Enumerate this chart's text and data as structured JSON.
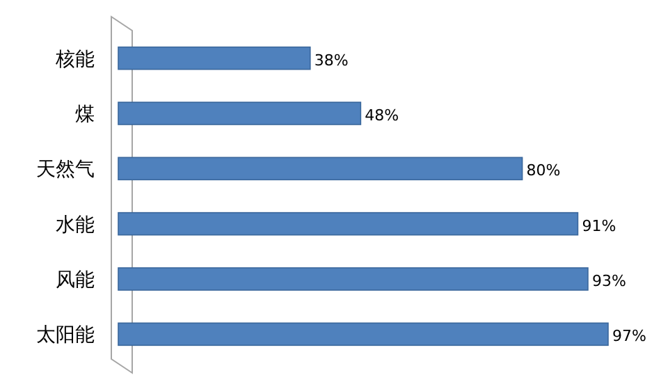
{
  "chart_data": {
    "type": "bar",
    "orientation": "horizontal",
    "categories": [
      "核能",
      "煤",
      "天然气",
      "水能",
      "风能",
      "太阳能"
    ],
    "values": [
      38,
      48,
      80,
      91,
      93,
      97
    ],
    "color": "#4f81bd",
    "value_labels": [
      "38%",
      "48%",
      "80%",
      "91%",
      "93%",
      "97%"
    ]
  }
}
